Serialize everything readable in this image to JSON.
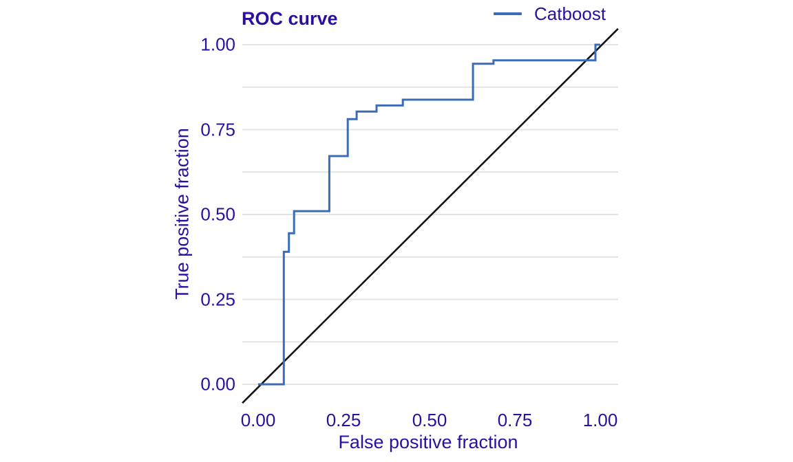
{
  "chart_data": {
    "type": "line",
    "subtype": "roc-step-curve",
    "title": "ROC curve",
    "xlabel": "False positive fraction",
    "ylabel": "True positive fraction",
    "xlim": [
      -0.05,
      1.05
    ],
    "ylim": [
      -0.055,
      1.05
    ],
    "x_ticks": [
      0,
      0.25,
      0.5,
      0.75,
      1
    ],
    "x_tick_labels": [
      "0.00",
      "0.25",
      "0.50",
      "0.75",
      "1.00"
    ],
    "y_ticks": [
      0,
      0.25,
      0.5,
      0.75,
      1
    ],
    "y_tick_labels": [
      "0.00",
      "0.25",
      "0.50",
      "0.75",
      "1.00"
    ],
    "grid": "horizontal-only",
    "y_gridline_values": [
      0,
      0.125,
      0.25,
      0.375,
      0.5,
      0.625,
      0.75,
      0.875,
      1
    ],
    "legend": {
      "position": "top-right",
      "entries": [
        {
          "label": "Catboost",
          "color": "#3c6cb4"
        }
      ]
    },
    "series": [
      {
        "name": "Catboost",
        "color": "#3c6cb4",
        "points": [
          [
            0,
            0
          ],
          [
            0.075,
            0
          ],
          [
            0.075,
            0.39
          ],
          [
            0.09,
            0.39
          ],
          [
            0.09,
            0.445
          ],
          [
            0.105,
            0.445
          ],
          [
            0.105,
            0.51
          ],
          [
            0.208,
            0.51
          ],
          [
            0.208,
            0.672
          ],
          [
            0.262,
            0.672
          ],
          [
            0.262,
            0.781
          ],
          [
            0.288,
            0.781
          ],
          [
            0.288,
            0.803
          ],
          [
            0.346,
            0.803
          ],
          [
            0.346,
            0.821
          ],
          [
            0.423,
            0.821
          ],
          [
            0.423,
            0.838
          ],
          [
            0.628,
            0.838
          ],
          [
            0.628,
            0.944
          ],
          [
            0.688,
            0.944
          ],
          [
            0.688,
            0.954
          ],
          [
            0.986,
            0.954
          ],
          [
            0.986,
            1
          ],
          [
            1,
            1
          ]
        ]
      }
    ],
    "reference_line": {
      "description": "chance diagonal y = x",
      "x": [
        -0.046,
        1.052
      ],
      "y": [
        -0.055,
        1.047
      ],
      "color": "#141414"
    },
    "colors": {
      "text": "#2d0f9f",
      "curve": "#3c6cb4",
      "diagonal": "#141414",
      "gridline": "#e4e4e4",
      "background": "#ffffff"
    }
  }
}
